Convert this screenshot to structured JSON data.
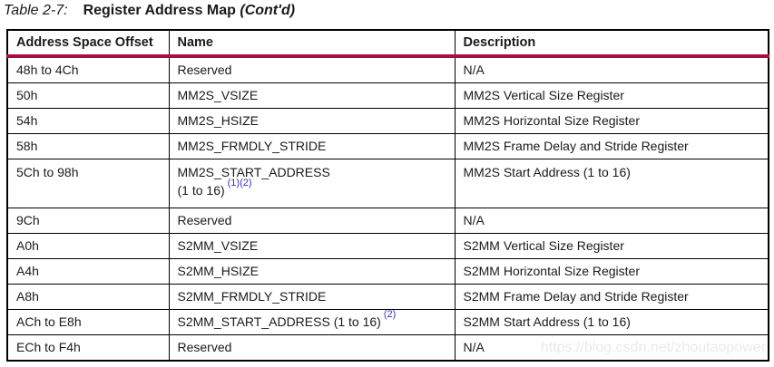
{
  "title": {
    "number": "Table 2-7:",
    "text": "Register Address Map",
    "cont": "(Cont'd)"
  },
  "table": {
    "headers": {
      "offset": "Address Space Offset",
      "name": "Name",
      "description": "Description"
    },
    "rows": [
      {
        "offset": "48h to 4Ch",
        "name": "Reserved",
        "desc": "N/A"
      },
      {
        "offset": "50h",
        "name": "MM2S_VSIZE",
        "desc": "MM2S Vertical Size Register"
      },
      {
        "offset": "54h",
        "name": "MM2S_HSIZE",
        "desc": "MM2S Horizontal Size Register"
      },
      {
        "offset": "58h",
        "name": "MM2S_FRMDLY_STRIDE",
        "desc": "MM2S Frame Delay and Stride Register"
      },
      {
        "offset": "5Ch to 98h",
        "name_line1": "MM2S_START_ADDRESS",
        "name_line2": "(1 to 16)",
        "footnotes": "(1)(2)",
        "desc": "MM2S Start Address (1 to 16)"
      },
      {
        "offset": "9Ch",
        "name": "Reserved",
        "desc": "N/A"
      },
      {
        "offset": "A0h",
        "name": "S2MM_VSIZE",
        "desc": "S2MM Vertical Size Register"
      },
      {
        "offset": "A4h",
        "name": "S2MM_HSIZE",
        "desc": "S2MM Horizontal Size Register"
      },
      {
        "offset": "A8h",
        "name": "S2MM_FRMDLY_STRIDE",
        "desc": "S2MM Frame Delay and Stride Register"
      },
      {
        "offset": "ACh to E8h",
        "name": "S2MM_START_ADDRESS (1 to 16)",
        "footnotes": "(2)",
        "desc": "S2MM Start Address (1 to 16)"
      },
      {
        "offset": "ECh to F4h",
        "name": "Reserved",
        "desc": "N/A"
      }
    ],
    "colors": {
      "header_rule": "#A80D44",
      "border": "#000000",
      "footnote_link": "#3333CC",
      "body_text": "#1a1a1a"
    }
  },
  "watermark": {
    "text": "https://blog.csdn.net/zhoutaopower"
  }
}
